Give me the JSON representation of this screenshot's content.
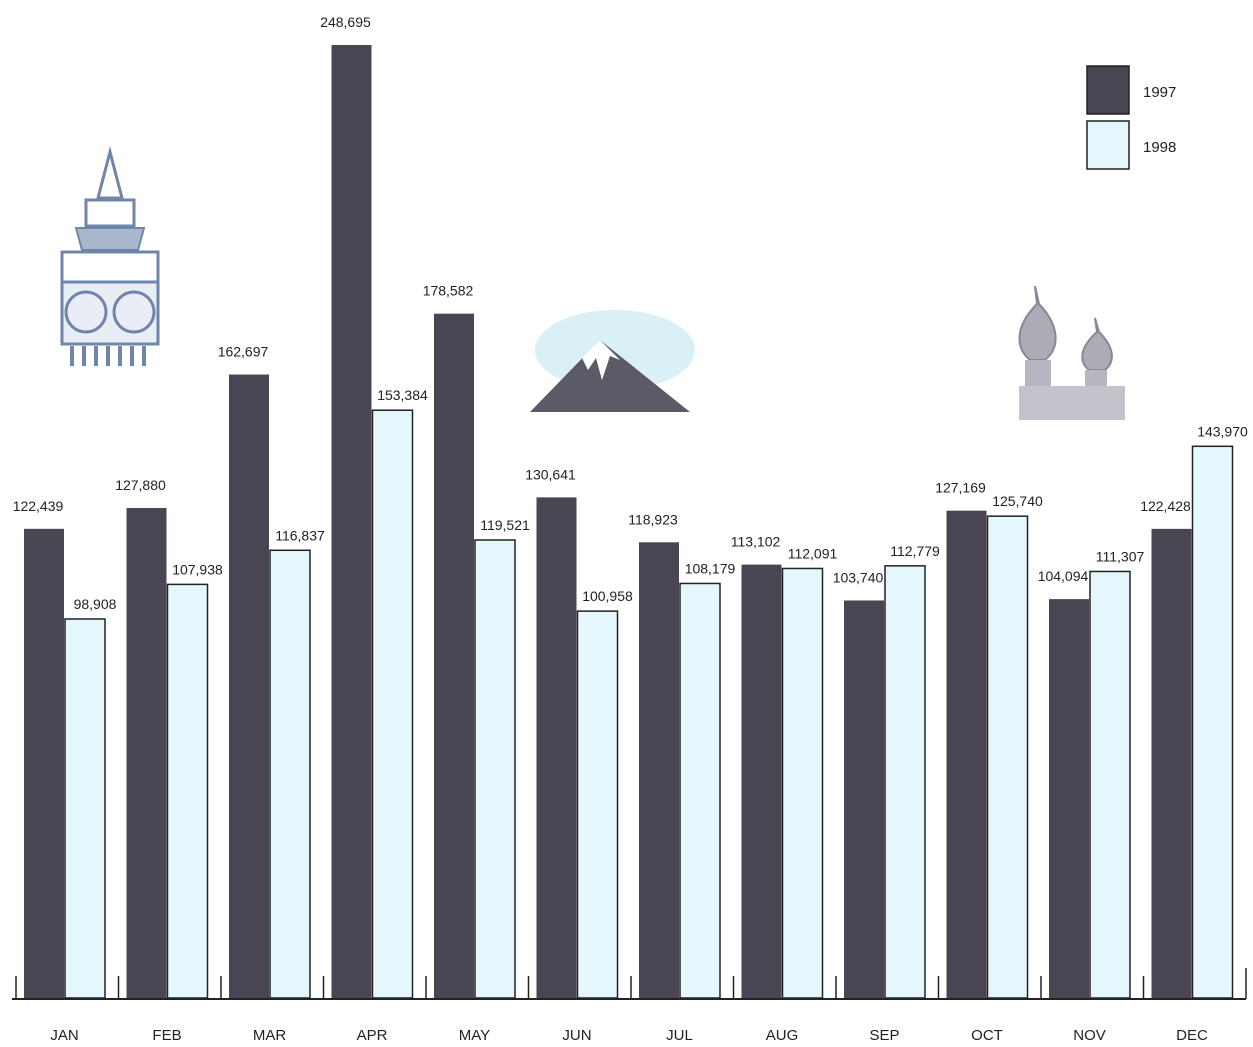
{
  "chart_data": {
    "type": "bar",
    "categories": [
      "JAN",
      "FEB",
      "MAR",
      "APR",
      "MAY",
      "JUN",
      "JUL",
      "AUG",
      "SEP",
      "OCT",
      "NOV",
      "DEC"
    ],
    "series": [
      {
        "name": "1997",
        "color": "#4a4552",
        "values": [
          122439,
          127880,
          162697,
          248695,
          178582,
          130641,
          118923,
          113102,
          103740,
          127169,
          104094,
          122428
        ],
        "labels": [
          "122,439",
          "127,880",
          "162,697",
          "248,695",
          "178,582",
          "130,641",
          "118,923",
          "113,102",
          "103,740",
          "127,169",
          "104,094",
          "122,428"
        ]
      },
      {
        "name": "1998",
        "color": "#e4f7fc",
        "values": [
          98908,
          107938,
          116837,
          153384,
          119521,
          100958,
          108179,
          112091,
          112779,
          125740,
          111307,
          143970
        ],
        "labels": [
          "98,908",
          "107,938",
          "116,837",
          "153,384",
          "119,521",
          "100,958",
          "108,179",
          "112,091",
          "112,779",
          "125,740",
          "111,307",
          "143,970"
        ]
      }
    ],
    "legend_position": "top-right",
    "ylim": [
      0,
      248695
    ],
    "grid": false,
    "decorations": [
      "clock-tower-icon",
      "mountain-icon",
      "onion-dome-icon"
    ]
  }
}
